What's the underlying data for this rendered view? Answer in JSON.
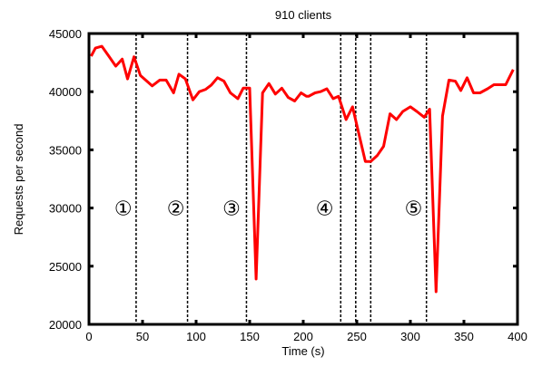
{
  "chart_data": {
    "type": "line",
    "title": "910 clients",
    "xlabel": "Time (s)",
    "ylabel": "Requests per second",
    "xlim": [
      0,
      400
    ],
    "ylim": [
      20000,
      45000
    ],
    "xticks": [
      0,
      50,
      100,
      150,
      200,
      250,
      300,
      350,
      400
    ],
    "yticks": [
      20000,
      25000,
      30000,
      35000,
      40000,
      45000
    ],
    "grid": false,
    "line_color": "#ff0000",
    "series": [
      {
        "x": [
          2,
          6,
          12,
          19,
          25,
          31,
          36,
          42,
          48,
          59,
          66,
          72,
          79,
          84,
          90,
          97,
          103,
          109,
          114,
          120,
          126,
          132,
          139,
          144,
          150,
          156,
          162,
          168,
          174,
          180,
          186,
          192,
          198,
          203,
          205,
          211,
          216,
          222,
          228,
          233,
          240,
          246,
          258,
          263,
          269,
          275,
          281,
          287,
          293,
          300,
          306,
          313,
          318,
          324,
          330,
          336,
          342,
          347,
          353,
          359,
          365,
          372,
          378,
          384,
          389,
          396
        ],
        "y": [
          43050,
          43750,
          43900,
          43000,
          42200,
          42800,
          41100,
          43000,
          41400,
          40500,
          41000,
          41000,
          39900,
          41500,
          41100,
          39300,
          40000,
          40200,
          40550,
          41200,
          40900,
          39900,
          39400,
          40300,
          40300,
          23900,
          39900,
          40700,
          39800,
          40300,
          39500,
          39200,
          39900,
          39600,
          39600,
          39900,
          40000,
          40250,
          39400,
          39600,
          37600,
          38700,
          34000,
          34000,
          34500,
          35300,
          38100,
          37600,
          38300,
          38700,
          38300,
          37800,
          38500,
          22800,
          37900,
          41000,
          40900,
          40100,
          41200,
          39900,
          39900,
          40250,
          40600,
          40600,
          40600,
          41900
        ]
      }
    ],
    "phase_boundaries": [
      44,
      92,
      147,
      235,
      249,
      263,
      315
    ],
    "annotations": [
      {
        "text": "①",
        "x": 32,
        "y": 30000
      },
      {
        "text": "②",
        "x": 81,
        "y": 30000
      },
      {
        "text": "③",
        "x": 133,
        "y": 30000
      },
      {
        "text": "④",
        "x": 220,
        "y": 30000
      },
      {
        "text": "⑤",
        "x": 303,
        "y": 30000
      }
    ]
  }
}
